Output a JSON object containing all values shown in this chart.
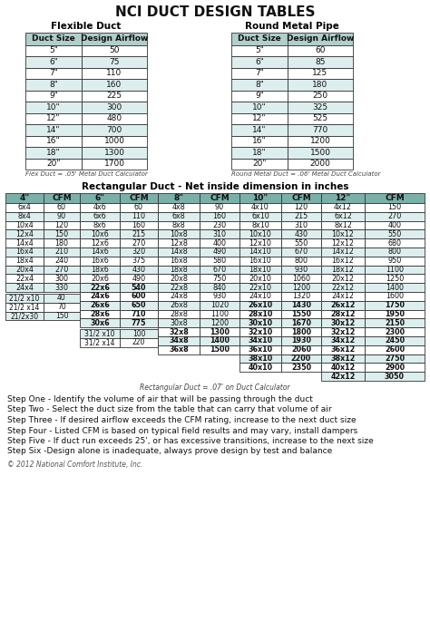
{
  "title": "NCI DUCT DESIGN TABLES",
  "flex_title": "Flexible Duct",
  "round_title": "Round Metal Pipe",
  "flex_headers": [
    "Duct Size",
    "Design Airflow"
  ],
  "round_headers": [
    "Duct Size",
    "Design Airflow"
  ],
  "flex_data": [
    [
      "5\"",
      "50"
    ],
    [
      "6\"",
      "75"
    ],
    [
      "7\"",
      "110"
    ],
    [
      "8\"",
      "160"
    ],
    [
      "9\"",
      "225"
    ],
    [
      "10\"",
      "300"
    ],
    [
      "12\"",
      "480"
    ],
    [
      "14\"",
      "700"
    ],
    [
      "16\"",
      "1000"
    ],
    [
      "18\"",
      "1300"
    ],
    [
      "20\"",
      "1700"
    ]
  ],
  "round_data": [
    [
      "5\"",
      "60"
    ],
    [
      "6\"",
      "85"
    ],
    [
      "7\"",
      "125"
    ],
    [
      "8\"",
      "180"
    ],
    [
      "9\"",
      "250"
    ],
    [
      "10\"",
      "325"
    ],
    [
      "12\"",
      "525"
    ],
    [
      "14\"",
      "770"
    ],
    [
      "16\"",
      "1200"
    ],
    [
      "18\"",
      "1500"
    ],
    [
      "20\"",
      "2000"
    ]
  ],
  "flex_note": "Flex Duct = .05' Metal Duct Calculator",
  "round_note": "Round Metal Duct = .06' Metal Duct Calculator",
  "rect_title": "Rectangular Duct - Net inside dimension in inches",
  "rect_headers": [
    "4\"",
    "CFM",
    "6\"",
    "CFM",
    "8\"",
    "CFM",
    "10\"",
    "CFM",
    "12\"",
    "CFM"
  ],
  "col4_data": [
    [
      "6x4",
      "60"
    ],
    [
      "8x4",
      "90"
    ],
    [
      "10x4",
      "120"
    ],
    [
      "12x4",
      "150"
    ],
    [
      "14x4",
      "180"
    ],
    [
      "16x4",
      "210"
    ],
    [
      "18x4",
      "240"
    ],
    [
      "20x4",
      "270"
    ],
    [
      "22x4",
      "300"
    ],
    [
      "24x4",
      "330"
    ]
  ],
  "col4_extra": [
    [
      "21/2 x10",
      "40"
    ],
    [
      "21/2 x14",
      "70"
    ],
    [
      "21/2x30",
      "150"
    ]
  ],
  "col6_data": [
    [
      "4x6",
      "60"
    ],
    [
      "6x6",
      "110"
    ],
    [
      "8x6",
      "160"
    ],
    [
      "10x6",
      "215"
    ],
    [
      "12x6",
      "270"
    ],
    [
      "14x6",
      "320"
    ],
    [
      "16x6",
      "375"
    ],
    [
      "18x6",
      "430"
    ],
    [
      "20x6",
      "490"
    ],
    [
      "22x6",
      "540"
    ],
    [
      "24x6",
      "600"
    ],
    [
      "26x6",
      "650"
    ],
    [
      "28x6",
      "710"
    ],
    [
      "30x6",
      "775"
    ]
  ],
  "col6_extra": [
    [
      "31/2 x10",
      "100"
    ],
    [
      "31/2 x14",
      "220"
    ]
  ],
  "col8_data": [
    [
      "4x8",
      "90"
    ],
    [
      "6x8",
      "160"
    ],
    [
      "8x8",
      "230"
    ],
    [
      "10x8",
      "310"
    ],
    [
      "12x8",
      "400"
    ],
    [
      "14x8",
      "490"
    ],
    [
      "16x8",
      "580"
    ],
    [
      "18x8",
      "670"
    ],
    [
      "20x8",
      "750"
    ],
    [
      "22x8",
      "840"
    ],
    [
      "24x8",
      "930"
    ],
    [
      "26x8",
      "1020"
    ],
    [
      "28x8",
      "1100"
    ],
    [
      "30x8",
      "1200"
    ],
    [
      "32x8",
      "1300"
    ],
    [
      "34x8",
      "1400"
    ],
    [
      "36x8",
      "1500"
    ]
  ],
  "col10_data": [
    [
      "4x10",
      "120"
    ],
    [
      "6x10",
      "215"
    ],
    [
      "8x10",
      "310"
    ],
    [
      "10x10",
      "430"
    ],
    [
      "12x10",
      "550"
    ],
    [
      "14x10",
      "670"
    ],
    [
      "16x10",
      "800"
    ],
    [
      "18x10",
      "930"
    ],
    [
      "20x10",
      "1060"
    ],
    [
      "22x10",
      "1200"
    ],
    [
      "24x10",
      "1320"
    ],
    [
      "26x10",
      "1430"
    ],
    [
      "28x10",
      "1550"
    ],
    [
      "30x10",
      "1670"
    ],
    [
      "32x10",
      "1800"
    ],
    [
      "34x10",
      "1930"
    ],
    [
      "36x10",
      "2060"
    ],
    [
      "38x10",
      "2200"
    ],
    [
      "40x10",
      "2350"
    ]
  ],
  "col12_data": [
    [
      "4x12",
      "150"
    ],
    [
      "6x12",
      "270"
    ],
    [
      "8x12",
      "400"
    ],
    [
      "10x12",
      "550"
    ],
    [
      "12x12",
      "680"
    ],
    [
      "14x12",
      "800"
    ],
    [
      "16x12",
      "950"
    ],
    [
      "18x12",
      "1100"
    ],
    [
      "20x12",
      "1250"
    ],
    [
      "22x12",
      "1400"
    ],
    [
      "24x12",
      "1600"
    ],
    [
      "26x12",
      "1750"
    ],
    [
      "28x12",
      "1950"
    ],
    [
      "30x12",
      "2150"
    ],
    [
      "32x12",
      "2300"
    ],
    [
      "34x12",
      "2450"
    ],
    [
      "36x12",
      "2600"
    ],
    [
      "38x12",
      "2750"
    ],
    [
      "40x12",
      "2900"
    ],
    [
      "42x12",
      "3050"
    ]
  ],
  "rect_note": "Rectangular Duct = .07' on Duct Calculator",
  "steps": [
    "Step One - Identify the volume of air that will be passing through the duct",
    "Step Two - Select the duct size from the table that can carry that volume of air",
    "Step Three - If desired airflow exceeds the CFM rating, increase to the next duct size",
    "Step Four - Listed CFM is based on typical field results and may vary, install dampers",
    "Step Five - If duct run exceeds 25', or has excessive transitions, increase to the next size",
    "Step Six -Design alone is inadequate, always prove design by test and balance"
  ],
  "copyright": "© 2012 National Comfort Institute, Inc.",
  "header_bg": "#b0ceca",
  "header_bold_bg": "#7ab0a8",
  "cell_bg_white": "#ffffff",
  "cell_bg_light": "#dceeed",
  "border_color": "#333333",
  "text_color": "#111111"
}
